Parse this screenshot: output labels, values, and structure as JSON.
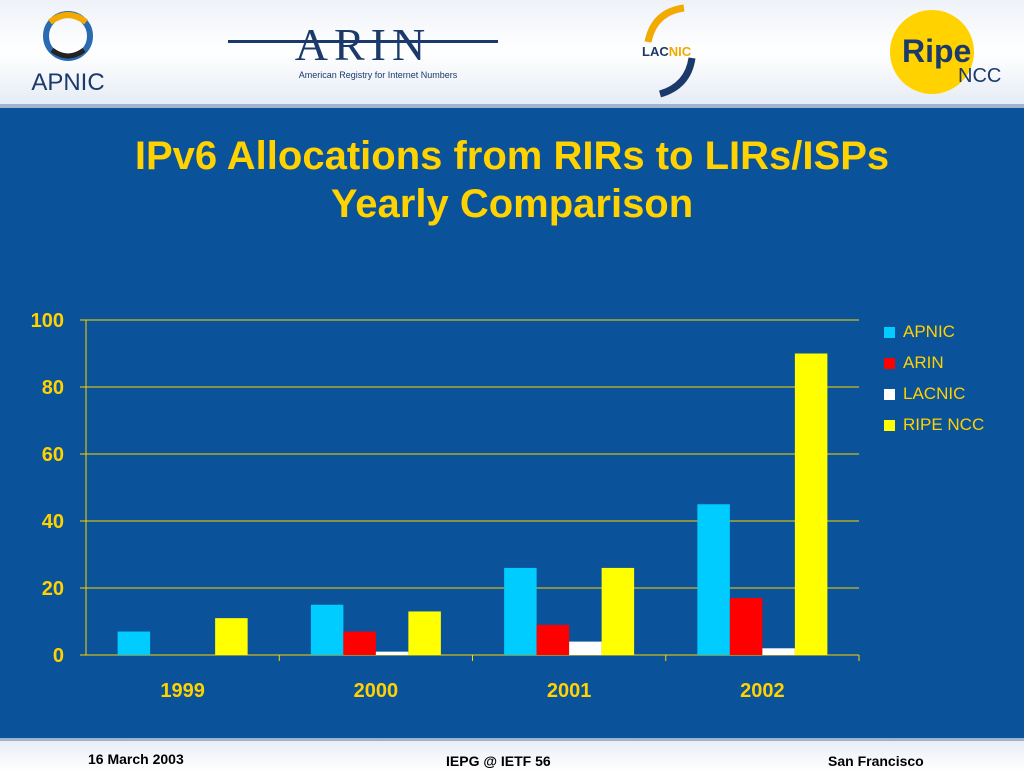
{
  "header": {
    "logos": {
      "apnic": "APNIC",
      "arin": "ARIN",
      "arin_tagline": "American Registry for Internet Numbers",
      "lacnic_lac": "LAC",
      "lacnic_nic": "NIC",
      "ripe": "Ripe",
      "ripe_sub": "NCC"
    }
  },
  "slide": {
    "title_line1": "IPv6 Allocations from RIRs to LIRs/ISPs",
    "title_line2": "Yearly Comparison"
  },
  "chart_data": {
    "type": "bar",
    "categories": [
      "1999",
      "2000",
      "2001",
      "2002"
    ],
    "series": [
      {
        "name": "APNIC",
        "values": [
          7,
          15,
          26,
          45
        ],
        "color": "#00ccff"
      },
      {
        "name": "ARIN",
        "values": [
          0,
          7,
          9,
          17
        ],
        "color": "#ff0000"
      },
      {
        "name": "LACNIC",
        "values": [
          0,
          1,
          4,
          2
        ],
        "color": "#ffffff"
      },
      {
        "name": "RIPE NCC",
        "values": [
          11,
          13,
          26,
          90
        ],
        "color": "#ffff00"
      }
    ],
    "yticks": [
      "0",
      "20",
      "40",
      "60",
      "80",
      "100"
    ],
    "ylim": [
      0,
      100
    ],
    "grid": true,
    "legend_position": "right",
    "colors": {
      "gridline": "#ffd200",
      "axis_text": "#ffd200",
      "background": "#0a5299"
    }
  },
  "footer": {
    "date": "16 March 2003",
    "event": "IEPG @ IETF 56",
    "location": "San Francisco"
  }
}
